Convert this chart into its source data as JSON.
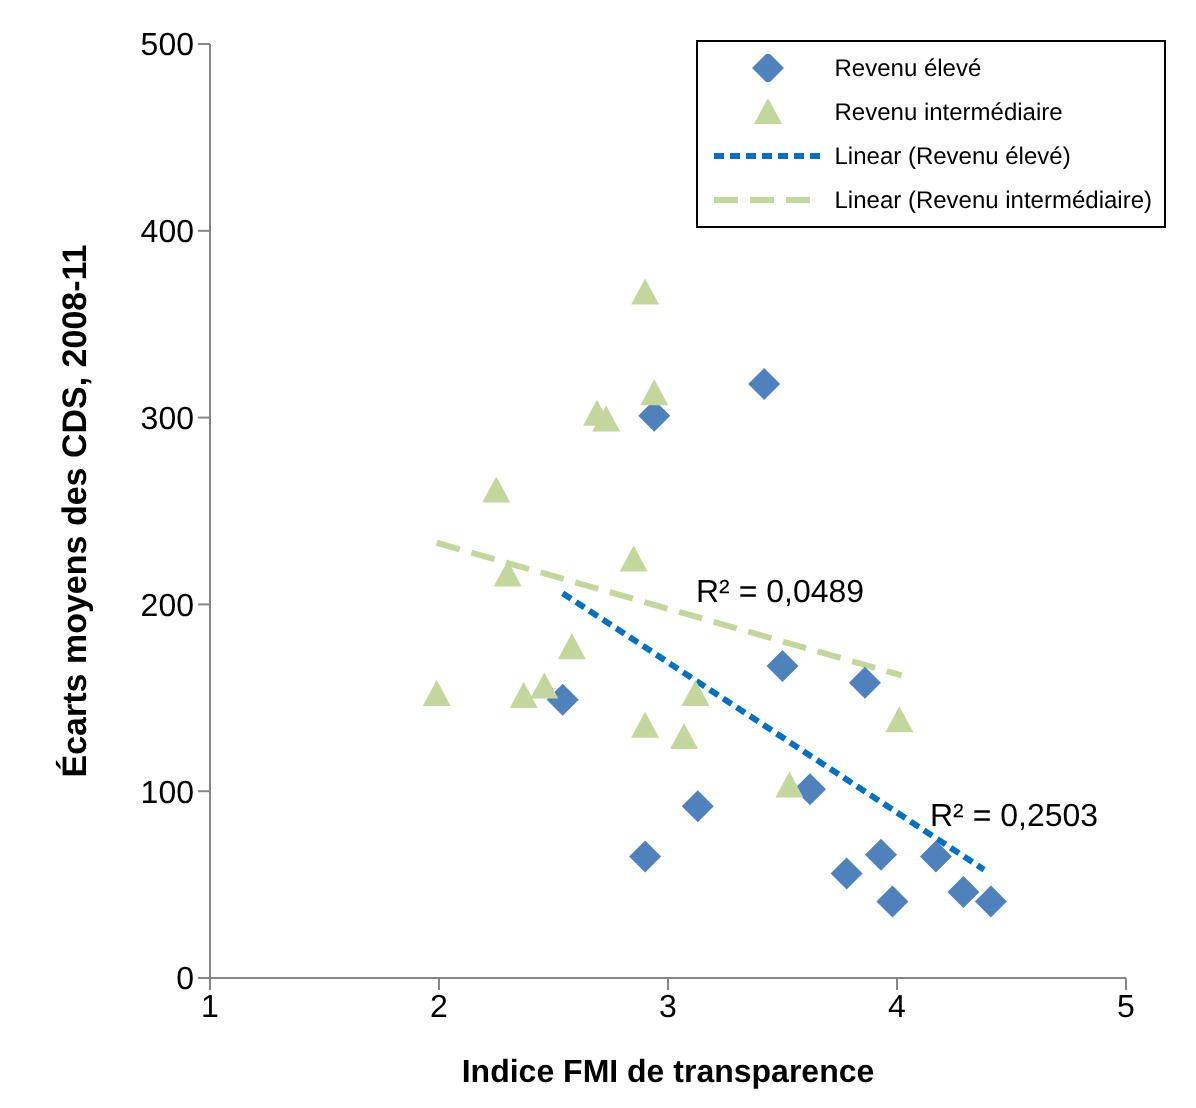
{
  "chart_data": {
    "type": "scatter",
    "xlabel": "Indice FMI de transparence",
    "ylabel": "Écarts moyens des CDS, 2008-11",
    "xlim": [
      1,
      5
    ],
    "xticks": [
      1,
      2,
      3,
      4,
      5
    ],
    "ylim": [
      0,
      500
    ],
    "yticks": [
      0,
      100,
      200,
      300,
      400,
      500
    ],
    "grid": false,
    "legend": "top right",
    "series": [
      {
        "name": "Revenu élevé",
        "marker": "diamond",
        "color": "#4f81bd",
        "x": [
          3.42,
          2.94,
          3.5,
          2.54,
          3.86,
          3.13,
          2.9,
          3.62,
          3.93,
          3.78,
          4.17,
          3.98,
          4.29,
          4.41
        ],
        "values": [
          318,
          301,
          167,
          149,
          158,
          92,
          65,
          101,
          66,
          56,
          65,
          41,
          46,
          41
        ]
      },
      {
        "name": "Revenu intermédiaire",
        "marker": "triangle",
        "color": "#c3d69b",
        "x": [
          2.9,
          2.94,
          2.69,
          2.73,
          2.25,
          2.85,
          2.3,
          2.58,
          1.99,
          2.37,
          2.46,
          3.12,
          2.9,
          3.07,
          3.53,
          4.01
        ],
        "values": [
          367,
          313,
          302,
          299,
          261,
          224,
          216,
          177,
          152,
          151,
          156,
          152,
          135,
          129,
          103,
          138
        ]
      },
      {
        "name": "Linear (Revenu élevé)",
        "type": "line",
        "marker": "none",
        "line_style": "dotted",
        "color": "#0070c0",
        "x": [
          2.54,
          4.38
        ],
        "values": [
          206,
          58
        ]
      },
      {
        "name": "Linear (Revenu intermédiaire)",
        "type": "line",
        "marker": "none",
        "line_style": "dashed",
        "color": "#c3d69b",
        "x": [
          1.99,
          4.02
        ],
        "values": [
          233,
          162
        ]
      }
    ],
    "annotations": [
      "R² = 0,0489",
      "R² = 0,2503"
    ]
  }
}
